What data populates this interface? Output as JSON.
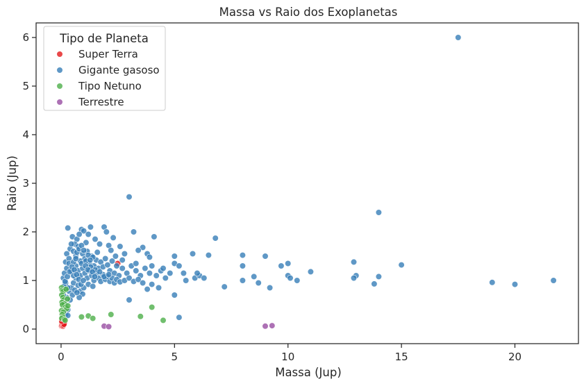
{
  "chart_data": {
    "type": "scatter",
    "title": "Massa vs Raio dos Exoplanetas",
    "xlabel": "Massa (Jup)",
    "ylabel": "Raio (Jup)",
    "xlim": [
      -1.1,
      22.8
    ],
    "ylim": [
      -0.3,
      6.3
    ],
    "xticks": [
      0,
      5,
      10,
      15,
      20
    ],
    "yticks": [
      0,
      1,
      2,
      3,
      4,
      5,
      6
    ],
    "grid": false,
    "legend": {
      "title": "Tipo de Planeta",
      "placement": "top-left"
    },
    "series": [
      {
        "name": "Super Terra",
        "color": "#e41a1c",
        "points": [
          [
            0.01,
            0.08
          ],
          [
            0.02,
            0.1
          ],
          [
            0.03,
            0.12
          ],
          [
            0.05,
            0.09
          ],
          [
            0.06,
            0.14
          ],
          [
            0.08,
            0.11
          ],
          [
            0.1,
            0.1
          ],
          [
            0.12,
            0.13
          ],
          [
            0.15,
            0.12
          ],
          [
            0.02,
            0.06
          ],
          [
            0.04,
            0.07
          ],
          [
            0.07,
            0.15
          ],
          [
            0.09,
            0.06
          ],
          [
            0.11,
            0.08
          ],
          [
            0.13,
            0.1
          ],
          [
            0.03,
            0.16
          ],
          [
            2.5,
            1.35
          ]
        ]
      },
      {
        "name": "Gigante gasoso",
        "color": "#377eb8",
        "points": [
          [
            17.5,
            6.0
          ],
          [
            3.0,
            2.72
          ],
          [
            14.0,
            2.4
          ],
          [
            0.3,
            2.08
          ],
          [
            0.9,
            2.05
          ],
          [
            1.9,
            2.1
          ],
          [
            2.0,
            2.0
          ],
          [
            3.2,
            2.0
          ],
          [
            4.1,
            1.9
          ],
          [
            0.5,
            1.9
          ],
          [
            0.7,
            1.85
          ],
          [
            1.5,
            1.85
          ],
          [
            2.3,
            1.88
          ],
          [
            6.8,
            1.87
          ],
          [
            1.0,
            2.02
          ],
          [
            1.3,
            2.1
          ],
          [
            0.8,
            1.95
          ],
          [
            1.2,
            1.95
          ],
          [
            0.6,
            1.75
          ],
          [
            1.1,
            1.78
          ],
          [
            1.7,
            1.75
          ],
          [
            2.1,
            1.72
          ],
          [
            2.6,
            1.7
          ],
          [
            3.6,
            1.68
          ],
          [
            5.8,
            1.55
          ],
          [
            6.5,
            1.52
          ],
          [
            8.0,
            1.52
          ],
          [
            9.0,
            1.5
          ],
          [
            5.0,
            1.5
          ],
          [
            3.8,
            1.55
          ],
          [
            3.4,
            1.62
          ],
          [
            3.9,
            1.48
          ],
          [
            2.8,
            1.55
          ],
          [
            2.2,
            1.62
          ],
          [
            1.6,
            1.58
          ],
          [
            0.4,
            1.65
          ],
          [
            0.2,
            1.38
          ],
          [
            0.25,
            1.55
          ],
          [
            0.35,
            1.45
          ],
          [
            0.45,
            1.75
          ],
          [
            0.55,
            1.6
          ],
          [
            0.65,
            1.5
          ],
          [
            0.75,
            1.7
          ],
          [
            0.85,
            1.4
          ],
          [
            0.95,
            1.55
          ],
          [
            1.05,
            1.45
          ],
          [
            1.15,
            1.6
          ],
          [
            1.25,
            1.35
          ],
          [
            1.35,
            1.5
          ],
          [
            1.45,
            1.3
          ],
          [
            1.55,
            1.42
          ],
          [
            1.65,
            1.25
          ],
          [
            1.75,
            1.38
          ],
          [
            1.85,
            1.28
          ],
          [
            1.95,
            1.45
          ],
          [
            2.05,
            1.32
          ],
          [
            2.15,
            1.2
          ],
          [
            2.25,
            1.4
          ],
          [
            2.35,
            1.15
          ],
          [
            2.45,
            1.3
          ],
          [
            2.55,
            1.1
          ],
          [
            2.7,
            1.25
          ],
          [
            2.9,
            1.15
          ],
          [
            3.1,
            1.3
          ],
          [
            3.3,
            1.2
          ],
          [
            3.5,
            1.1
          ],
          [
            3.7,
            1.25
          ],
          [
            3.9,
            1.15
          ],
          [
            4.2,
            1.1
          ],
          [
            4.4,
            1.2
          ],
          [
            4.6,
            1.05
          ],
          [
            4.8,
            1.15
          ],
          [
            5.0,
            1.35
          ],
          [
            5.2,
            1.3
          ],
          [
            5.4,
            1.15
          ],
          [
            5.5,
            1.0
          ],
          [
            5.9,
            1.05
          ],
          [
            6.1,
            1.1
          ],
          [
            6.3,
            1.05
          ],
          [
            7.2,
            0.87
          ],
          [
            8.0,
            1.3
          ],
          [
            8.0,
            1.0
          ],
          [
            8.5,
            1.08
          ],
          [
            8.7,
            0.95
          ],
          [
            9.2,
            0.85
          ],
          [
            9.7,
            1.3
          ],
          [
            10.0,
            1.35
          ],
          [
            10.0,
            1.1
          ],
          [
            10.1,
            1.05
          ],
          [
            10.4,
            1.0
          ],
          [
            11.0,
            1.18
          ],
          [
            12.9,
            1.38
          ],
          [
            13.0,
            1.1
          ],
          [
            12.9,
            1.05
          ],
          [
            13.8,
            0.93
          ],
          [
            14.0,
            1.08
          ],
          [
            15.0,
            1.32
          ],
          [
            19.0,
            0.96
          ],
          [
            20.0,
            0.92
          ],
          [
            21.7,
            1.0
          ],
          [
            3.0,
            0.6
          ],
          [
            4.0,
            0.92
          ],
          [
            5.0,
            0.7
          ],
          [
            5.2,
            0.24
          ],
          [
            0.3,
            0.4
          ],
          [
            0.2,
            0.3
          ],
          [
            0.15,
            0.55
          ],
          [
            0.25,
            0.65
          ],
          [
            0.35,
            0.78
          ],
          [
            0.45,
            0.85
          ],
          [
            0.55,
            0.95
          ],
          [
            0.65,
            1.05
          ],
          [
            0.75,
            0.9
          ],
          [
            0.85,
            0.78
          ],
          [
            0.5,
            0.7
          ],
          [
            0.4,
            0.6
          ],
          [
            0.3,
            0.85
          ],
          [
            0.2,
            0.95
          ],
          [
            0.1,
            1.05
          ],
          [
            0.15,
            1.15
          ],
          [
            0.25,
            1.25
          ],
          [
            0.35,
            1.35
          ],
          [
            0.45,
            1.2
          ],
          [
            0.55,
            1.1
          ],
          [
            0.65,
            1.3
          ],
          [
            0.75,
            1.2
          ],
          [
            0.85,
            1.1
          ],
          [
            0.95,
            1.25
          ],
          [
            1.05,
            1.15
          ],
          [
            1.15,
            1.05
          ],
          [
            1.25,
            1.2
          ],
          [
            1.35,
            1.1
          ],
          [
            1.45,
            1.0
          ],
          [
            1.55,
            1.15
          ],
          [
            1.65,
            1.05
          ],
          [
            1.75,
            0.98
          ],
          [
            1.85,
            1.12
          ],
          [
            1.95,
            1.02
          ],
          [
            2.05,
            1.08
          ],
          [
            2.15,
            0.98
          ],
          [
            2.25,
            1.05
          ],
          [
            2.35,
            0.95
          ],
          [
            2.45,
            1.02
          ],
          [
            2.6,
            0.97
          ],
          [
            2.8,
            1.0
          ],
          [
            3.0,
            1.05
          ],
          [
            3.2,
            0.98
          ],
          [
            3.4,
            1.02
          ],
          [
            3.6,
            0.95
          ],
          [
            3.8,
            0.82
          ],
          [
            4.3,
            0.85
          ],
          [
            0.95,
            0.72
          ],
          [
            0.8,
            0.65
          ],
          [
            0.6,
            0.8
          ],
          [
            0.7,
            0.75
          ],
          [
            1.0,
            0.85
          ],
          [
            1.2,
            0.92
          ],
          [
            1.4,
            0.88
          ],
          [
            0.1,
            0.7
          ],
          [
            0.2,
            0.5
          ],
          [
            0.3,
            0.28
          ],
          [
            0.9,
            1.35
          ],
          [
            1.1,
            1.4
          ],
          [
            1.3,
            1.28
          ],
          [
            1.5,
            1.22
          ],
          [
            1.7,
            1.18
          ],
          [
            1.9,
            1.08
          ],
          [
            2.1,
            1.12
          ],
          [
            0.55,
            1.38
          ],
          [
            0.65,
            1.45
          ],
          [
            0.7,
            1.58
          ],
          [
            0.8,
            1.65
          ],
          [
            0.9,
            1.72
          ],
          [
            1.0,
            1.62
          ],
          [
            1.2,
            1.52
          ],
          [
            1.4,
            1.48
          ],
          [
            2.4,
            1.5
          ],
          [
            2.7,
            1.42
          ],
          [
            3.3,
            1.35
          ],
          [
            4.0,
            1.3
          ],
          [
            4.5,
            1.25
          ],
          [
            6.0,
            1.15
          ],
          [
            0.12,
            0.88
          ],
          [
            0.18,
            0.98
          ],
          [
            0.28,
            1.08
          ],
          [
            0.38,
            1.18
          ],
          [
            0.48,
            1.28
          ],
          [
            0.58,
            1.22
          ],
          [
            0.68,
            1.12
          ],
          [
            0.78,
            1.02
          ],
          [
            0.88,
            0.92
          ],
          [
            0.98,
            1.0
          ],
          [
            1.08,
            1.3
          ],
          [
            1.18,
            1.22
          ],
          [
            1.28,
            1.42
          ],
          [
            1.38,
            1.18
          ],
          [
            1.48,
            1.08
          ]
        ]
      },
      {
        "name": "Tipo Netuno",
        "color": "#4daf4a",
        "points": [
          [
            0.02,
            0.85
          ],
          [
            0.05,
            0.8
          ],
          [
            0.1,
            0.78
          ],
          [
            0.03,
            0.7
          ],
          [
            0.08,
            0.65
          ],
          [
            0.12,
            0.6
          ],
          [
            0.04,
            0.55
          ],
          [
            0.15,
            0.52
          ],
          [
            0.06,
            0.5
          ],
          [
            0.2,
            0.45
          ],
          [
            0.25,
            0.42
          ],
          [
            0.3,
            0.48
          ],
          [
            0.02,
            0.38
          ],
          [
            0.1,
            0.35
          ],
          [
            0.05,
            0.3
          ],
          [
            0.08,
            0.25
          ],
          [
            0.03,
            0.22
          ],
          [
            0.14,
            0.2
          ],
          [
            0.18,
            0.18
          ],
          [
            0.22,
            0.82
          ],
          [
            0.28,
            0.62
          ],
          [
            0.9,
            0.25
          ],
          [
            1.2,
            0.27
          ],
          [
            1.4,
            0.22
          ],
          [
            2.2,
            0.3
          ],
          [
            3.5,
            0.26
          ],
          [
            4.0,
            0.45
          ],
          [
            4.5,
            0.18
          ]
        ]
      },
      {
        "name": "Terrestre",
        "color": "#984ea3",
        "points": [
          [
            1.9,
            0.06
          ],
          [
            2.1,
            0.05
          ],
          [
            9.0,
            0.06
          ],
          [
            9.3,
            0.07
          ]
        ]
      }
    ]
  }
}
